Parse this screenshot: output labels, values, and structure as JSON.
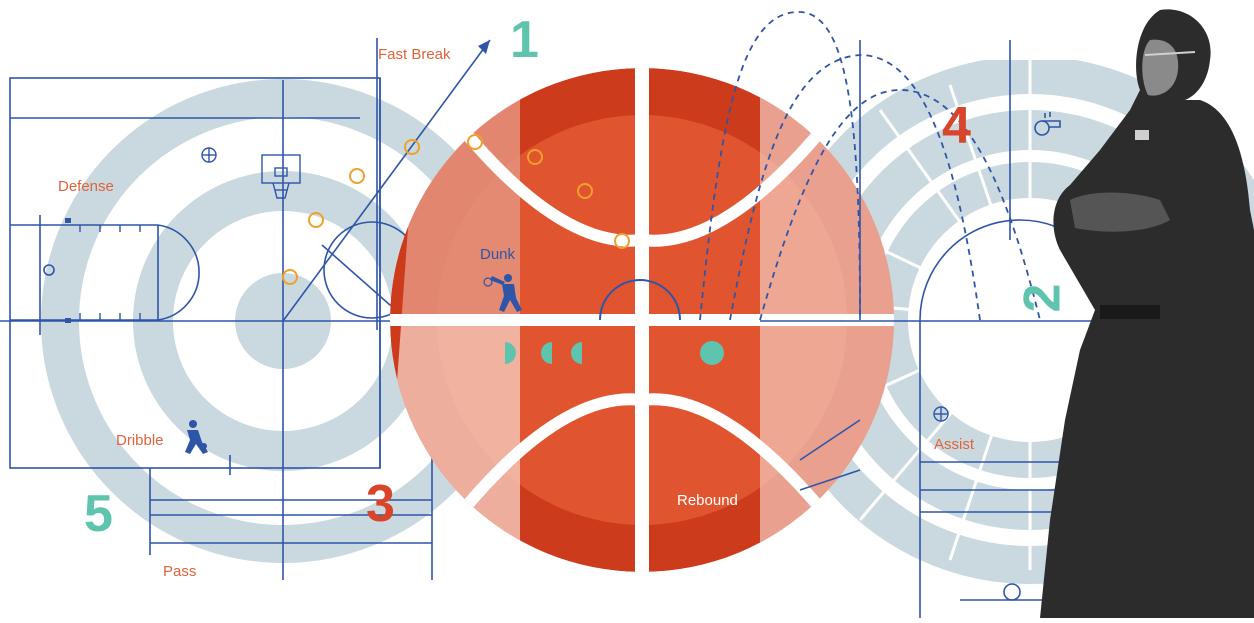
{
  "labels": {
    "fast_break": "Fast Break",
    "defense": "Defense",
    "dunk": "Dunk",
    "dribble": "Dribble",
    "pass": "Pass",
    "rebound": "Rebound",
    "assist": "Assist"
  },
  "numbers": {
    "n1": "1",
    "n2": "2",
    "n3": "3",
    "n4": "4",
    "n5": "5"
  },
  "colors": {
    "ball_dark": "#cc3b1c",
    "ball_mid": "#e0552f",
    "ball_light": "#f3c3b4",
    "ring": "#c9d9df",
    "line": "#2f55a8",
    "accent_teal": "#5fc4ad",
    "accent_orange": "#e0633a",
    "coach": "#2c2c2c"
  },
  "icons": [
    "basketball-icon",
    "hoop-icon",
    "dunk-player-icon",
    "dribble-player-icon",
    "whistle-icon"
  ]
}
